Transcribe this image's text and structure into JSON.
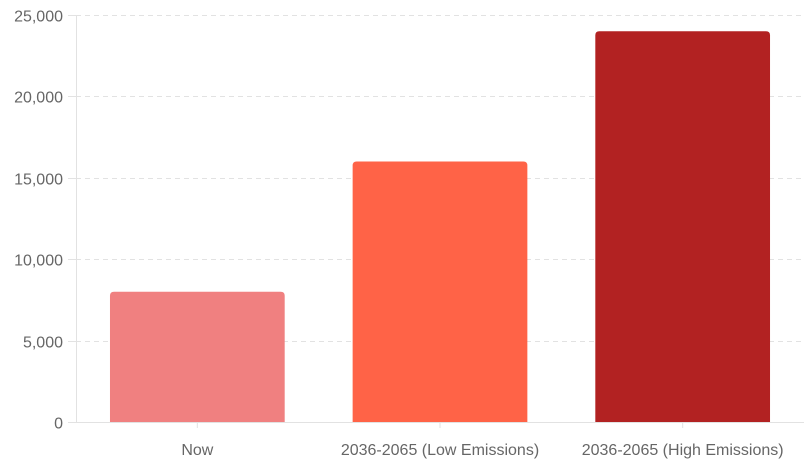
{
  "chart_data": {
    "type": "bar",
    "categories": [
      "Now",
      "2036-2065 (Low Emissions)",
      "2036-2065 (High Emissions)"
    ],
    "values": [
      8000,
      16000,
      24000
    ],
    "colors": [
      "#f08080",
      "#ff6347",
      "#b22222"
    ],
    "ylim": [
      0,
      25000
    ],
    "yticks": [
      0,
      5000,
      10000,
      15000,
      20000,
      25000
    ],
    "ytick_labels": [
      "0",
      "5,000",
      "10,000",
      "15,000",
      "20,000",
      "25,000"
    ],
    "grid": true,
    "legend": "none"
  }
}
